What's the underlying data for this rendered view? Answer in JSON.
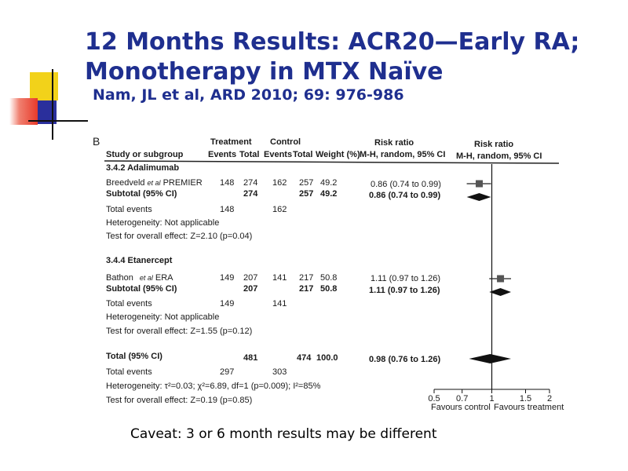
{
  "slide": {
    "title_line1": "12 Months Results:  ACR20—Early RA;",
    "title_line2": "Monotherapy in MTX Naïve",
    "subtitle": "Nam, JL et al, ARD 2010; 69: 976-986",
    "caveat": "Caveat: 3 or  6 month results may be different"
  },
  "colors": {
    "title": "#1f2f8f",
    "deco_yellow": "#f2d21a",
    "deco_red": "#e83a2a",
    "deco_blue": "#2a2f9c",
    "marker": "#555555"
  },
  "chart_data": {
    "type": "forest",
    "panel_label": "B",
    "headers": {
      "treatment": "Treatment",
      "control": "Control",
      "study": "Study or subgroup",
      "events": "Events",
      "total": "Total",
      "weight": "Weight (%)",
      "rr": "Risk  ratio",
      "rr_method": "M-H,  random, 95% CI",
      "plot_rr": "Risk  ratio",
      "plot_method": "M-H,  random, 95% CI"
    },
    "groups": [
      {
        "name": "3.4.2 Adalimumab",
        "study": {
          "author": "Breedveld",
          "etal": "et al",
          "trial": "PREMIER",
          "t_events": "148",
          "t_total": "274",
          "c_events": "162",
          "c_total": "257",
          "weight": "49.2",
          "ci": "0.86 (0.74 to 0.99)",
          "rr": 0.86,
          "lo": 0.74,
          "hi": 0.99
        },
        "subtotal": {
          "label": "Subtotal (95% CI)",
          "t_total": "274",
          "c_total": "257",
          "weight": "49.2",
          "ci": "0.86 (0.74 to 0.99)",
          "rr": 0.86,
          "lo": 0.74,
          "hi": 0.99
        },
        "total_events": {
          "label": "Total events",
          "t": "148",
          "c": "162"
        },
        "heterogeneity": "Heterogeneity: Not applicable",
        "overall": "Test for overall effect: Z=2.10 (p=0.04)"
      },
      {
        "name": "3.4.4 Etanercept",
        "study": {
          "author": "Bathon",
          "etal": "et al",
          "trial": "ERA",
          "t_events": "149",
          "t_total": "207",
          "c_events": "141",
          "c_total": "217",
          "weight": "50.8",
          "ci": "1.11 (0.97 to 1.26)",
          "rr": 1.11,
          "lo": 0.97,
          "hi": 1.26
        },
        "subtotal": {
          "label": "Subtotal (95% CI)",
          "t_total": "207",
          "c_total": "217",
          "weight": "50.8",
          "ci": "1.11 (0.97 to 1.26)",
          "rr": 1.11,
          "lo": 0.97,
          "hi": 1.26
        },
        "total_events": {
          "label": "Total events",
          "t": "149",
          "c": "141"
        },
        "heterogeneity": "Heterogeneity: Not applicable",
        "overall": "Test for overall effect: Z=1.55 (p=0.12)"
      }
    ],
    "total": {
      "label": "Total (95% CI)",
      "t_total": "481",
      "c_total": "474",
      "weight": "100.0",
      "ci": "0.98 (0.76 to 1.26)",
      "rr": 0.98,
      "lo": 0.76,
      "hi": 1.26,
      "events_label": "Total events",
      "t_events": "297",
      "c_events": "303",
      "heterogeneity": "Heterogeneity: τ²=0.03; χ²=6.89, df=1 (p=0.009); I²=85%",
      "overall": "Test for overall effect: Z=0.19 (p=0.85)"
    },
    "axis": {
      "scale": "log",
      "ticks": [
        0.5,
        0.7,
        1,
        1.5,
        2
      ],
      "tick_labels": [
        "0.5",
        "0.7",
        "1",
        "1.5",
        "2"
      ],
      "reference": 1,
      "left_label": "Favours control",
      "right_label": "Favours treatment"
    }
  }
}
